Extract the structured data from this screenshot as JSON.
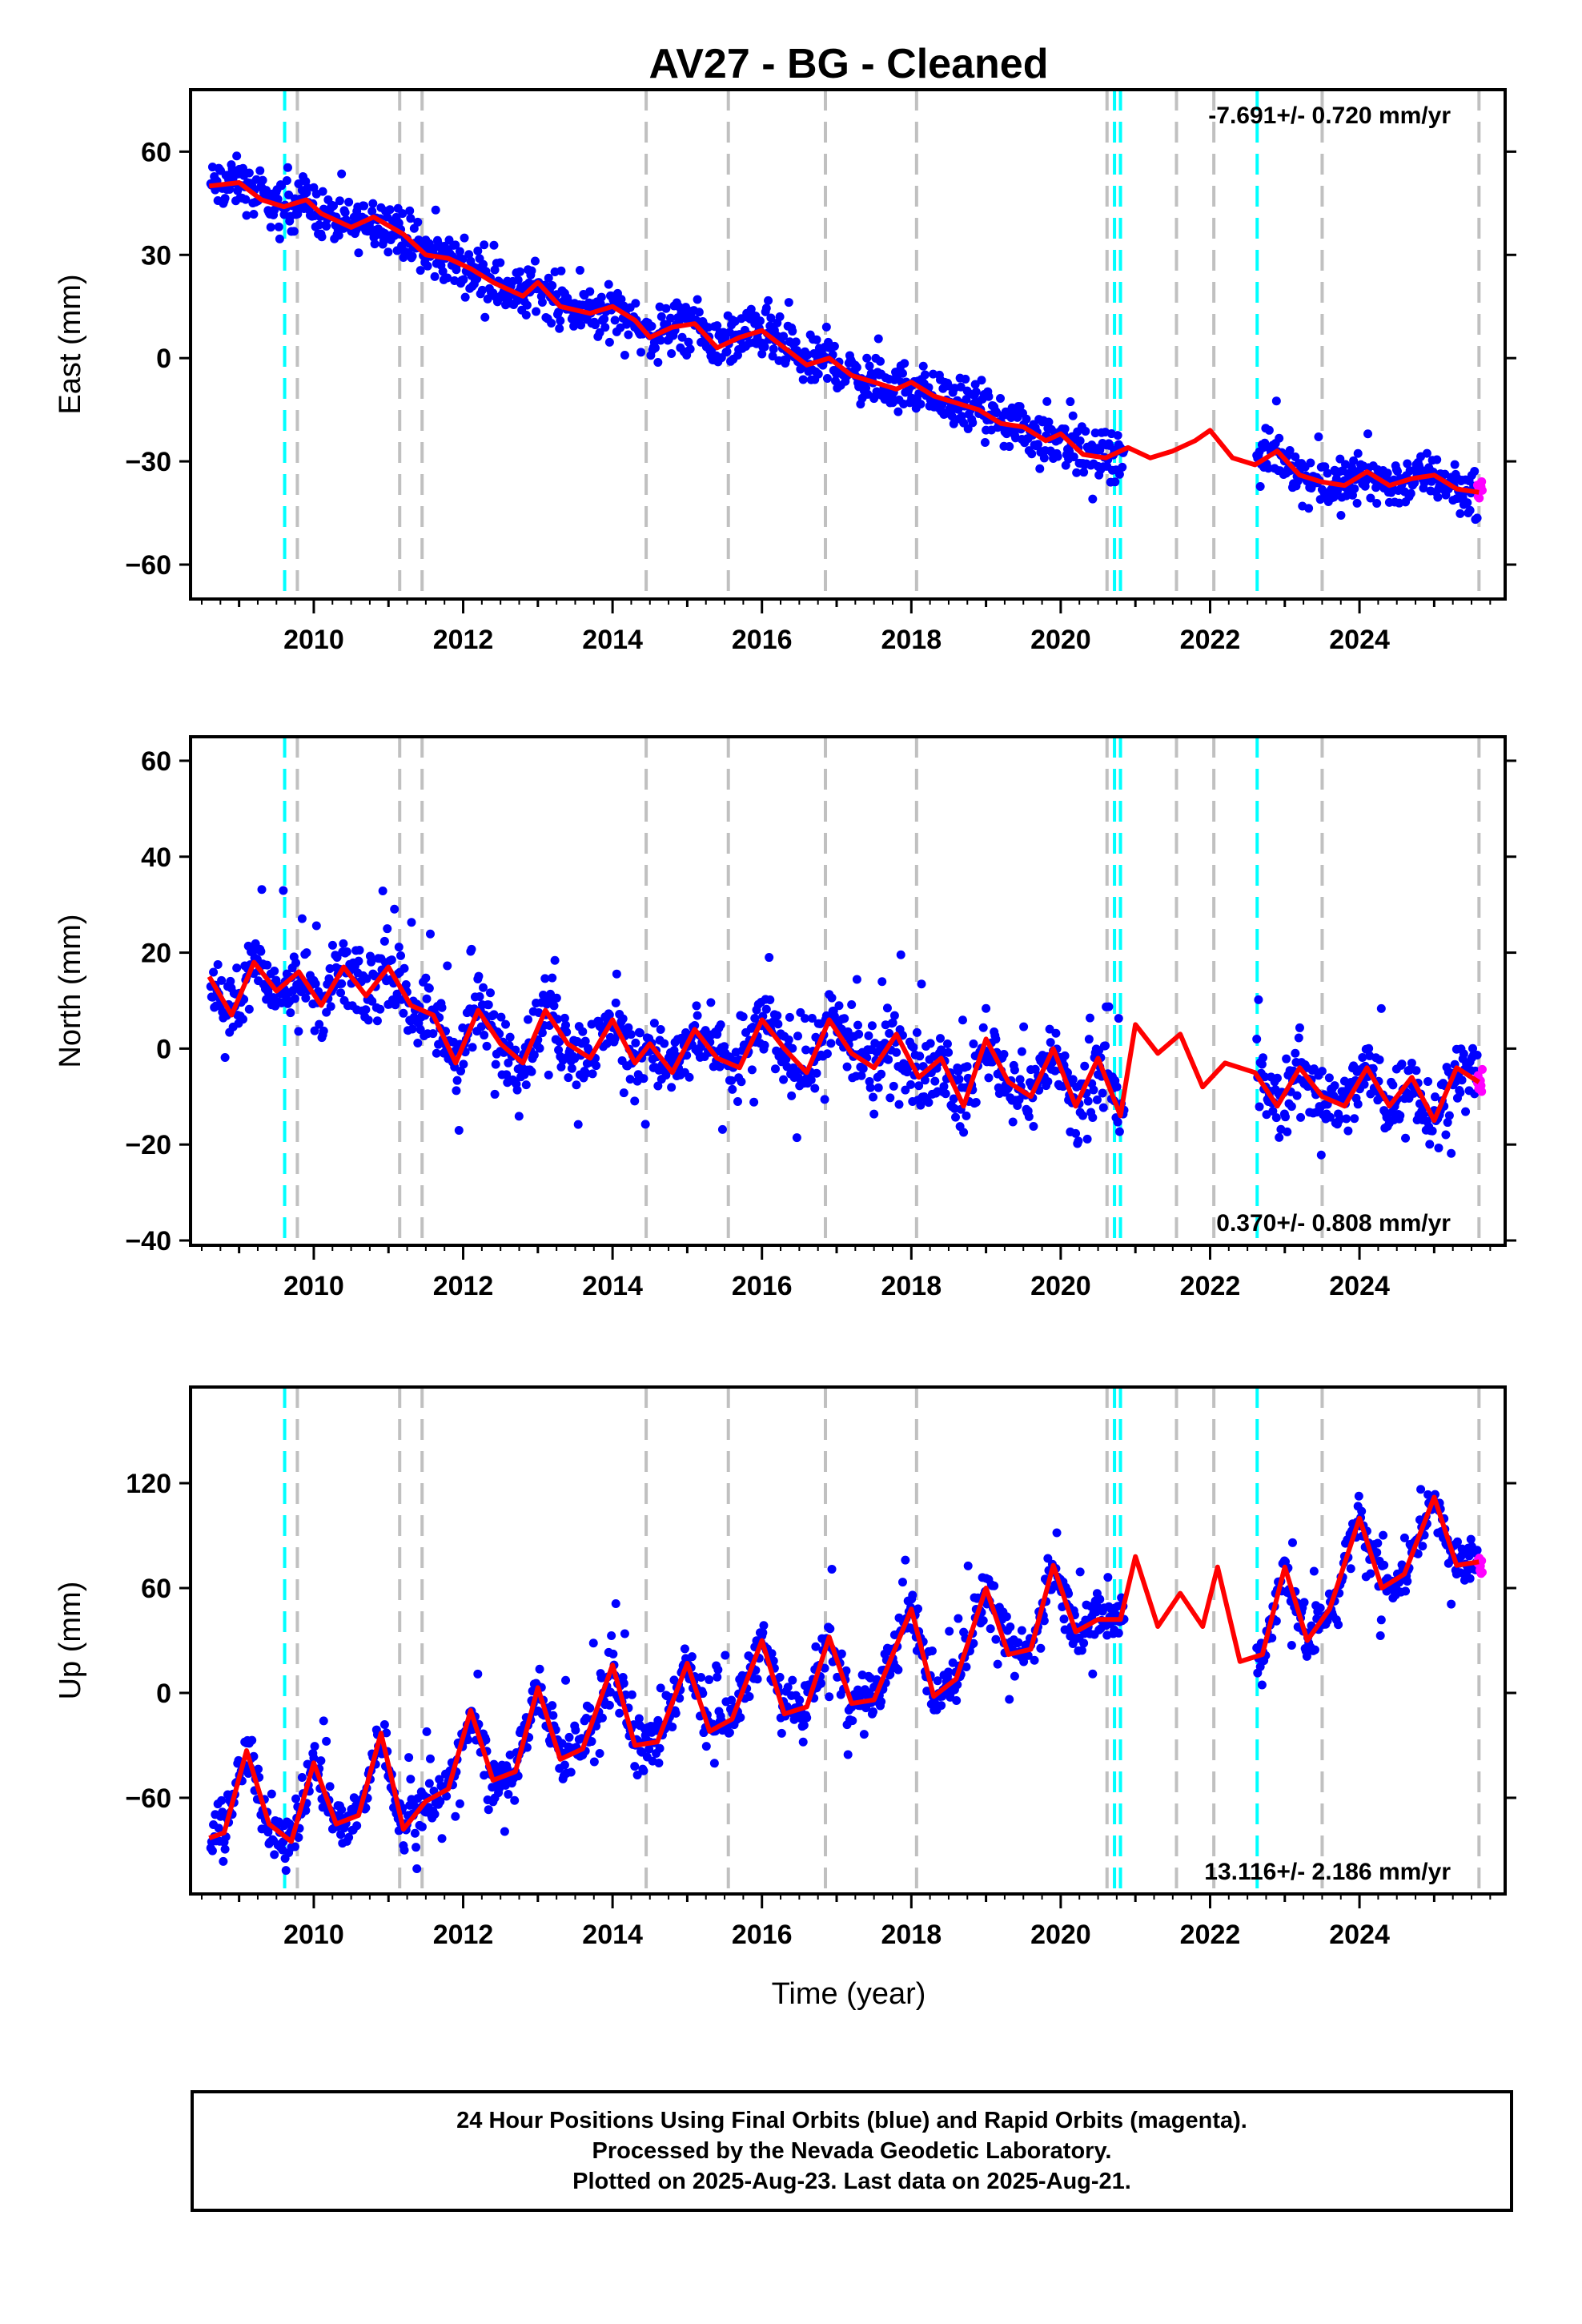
{
  "chart_data": {
    "type": "scatter",
    "title": "AV27  - BG - Cleaned",
    "xlabel": "Time (year)",
    "xlim": [
      2008.35,
      2025.95
    ],
    "x_ticks": [
      2010,
      2012,
      2014,
      2016,
      2018,
      2020,
      2022,
      2024
    ],
    "colors": {
      "final_orbits": "#0000ff",
      "rapid_orbits": "#ff00ff",
      "model_fit": "#ff0000",
      "equipment_change": "#00ffff",
      "other_event": "#c0c0c0"
    },
    "event_lines": {
      "cyan": [
        2009.61,
        2020.72,
        2020.8,
        2022.63
      ],
      "gray": [
        2009.78,
        2011.15,
        2011.45,
        2014.45,
        2015.55,
        2016.85,
        2018.07,
        2020.62,
        2021.55,
        2022.05,
        2023.5,
        2025.6
      ]
    },
    "panels": [
      {
        "id": "east",
        "ylabel": "East (mm)",
        "ylim": [
          -70,
          78
        ],
        "y_ticks": [
          -60,
          -30,
          0,
          30,
          60
        ],
        "rate_text": "-7.691+/- 0.720 mm/yr",
        "rate_position": "top-right",
        "model": [
          [
            2008.6,
            50
          ],
          [
            2009.0,
            51
          ],
          [
            2009.3,
            46
          ],
          [
            2009.6,
            44
          ],
          [
            2009.9,
            46
          ],
          [
            2010.1,
            42
          ],
          [
            2010.5,
            38
          ],
          [
            2010.8,
            41
          ],
          [
            2011.2,
            36
          ],
          [
            2011.5,
            30
          ],
          [
            2011.8,
            29
          ],
          [
            2012.1,
            26
          ],
          [
            2012.4,
            22
          ],
          [
            2012.8,
            18
          ],
          [
            2013.0,
            22
          ],
          [
            2013.3,
            15
          ],
          [
            2013.7,
            13
          ],
          [
            2014.0,
            15
          ],
          [
            2014.3,
            11
          ],
          [
            2014.5,
            6
          ],
          [
            2014.8,
            9
          ],
          [
            2015.1,
            10
          ],
          [
            2015.4,
            3
          ],
          [
            2015.7,
            6
          ],
          [
            2016.0,
            8
          ],
          [
            2016.3,
            3
          ],
          [
            2016.6,
            -2
          ],
          [
            2016.9,
            0
          ],
          [
            2017.2,
            -5
          ],
          [
            2017.5,
            -7
          ],
          [
            2017.8,
            -9
          ],
          [
            2018.0,
            -7
          ],
          [
            2018.3,
            -11
          ],
          [
            2018.6,
            -13
          ],
          [
            2018.9,
            -15
          ],
          [
            2019.2,
            -19
          ],
          [
            2019.5,
            -20
          ],
          [
            2019.8,
            -24
          ],
          [
            2020.0,
            -22
          ],
          [
            2020.3,
            -28
          ],
          [
            2020.6,
            -29
          ],
          [
            2020.9,
            -26
          ],
          [
            2021.2,
            -29
          ],
          [
            2021.5,
            -27
          ],
          [
            2021.8,
            -24
          ],
          [
            2022.0,
            -21
          ],
          [
            2022.3,
            -29
          ],
          [
            2022.6,
            -31
          ],
          [
            2022.9,
            -27
          ],
          [
            2023.2,
            -34
          ],
          [
            2023.5,
            -36
          ],
          [
            2023.8,
            -37
          ],
          [
            2024.1,
            -33
          ],
          [
            2024.4,
            -37
          ],
          [
            2024.7,
            -35
          ],
          [
            2025.0,
            -34
          ],
          [
            2025.3,
            -38
          ],
          [
            2025.6,
            -39
          ]
        ],
        "scatter": {
          "trend": [
            [
              2008.6,
              52
            ],
            [
              2025.6,
              -38
            ]
          ],
          "spread": 5,
          "outlier_spread": 14
        }
      },
      {
        "id": "north",
        "ylabel": "North (mm)",
        "ylim": [
          -41,
          65
        ],
        "y_ticks": [
          -40,
          -20,
          0,
          20,
          40,
          60
        ],
        "rate_text": "0.370+/- 0.808 mm/yr",
        "rate_position": "bottom-right",
        "model": [
          [
            2008.6,
            15
          ],
          [
            2008.9,
            7
          ],
          [
            2009.2,
            18
          ],
          [
            2009.5,
            12
          ],
          [
            2009.8,
            16
          ],
          [
            2010.1,
            9
          ],
          [
            2010.4,
            17
          ],
          [
            2010.7,
            11
          ],
          [
            2011.0,
            17
          ],
          [
            2011.3,
            9
          ],
          [
            2011.6,
            7
          ],
          [
            2011.9,
            -3
          ],
          [
            2012.2,
            8
          ],
          [
            2012.5,
            1
          ],
          [
            2012.8,
            -3
          ],
          [
            2013.1,
            8
          ],
          [
            2013.4,
            1
          ],
          [
            2013.7,
            -2
          ],
          [
            2014.0,
            6
          ],
          [
            2014.3,
            -3
          ],
          [
            2014.5,
            1
          ],
          [
            2014.8,
            -5
          ],
          [
            2015.1,
            4
          ],
          [
            2015.4,
            -2
          ],
          [
            2015.7,
            -4
          ],
          [
            2016.0,
            6
          ],
          [
            2016.3,
            0
          ],
          [
            2016.6,
            -5
          ],
          [
            2016.9,
            6
          ],
          [
            2017.2,
            -1
          ],
          [
            2017.5,
            -4
          ],
          [
            2017.8,
            3
          ],
          [
            2018.1,
            -6
          ],
          [
            2018.4,
            -2
          ],
          [
            2018.7,
            -12
          ],
          [
            2019.0,
            2
          ],
          [
            2019.3,
            -7
          ],
          [
            2019.6,
            -10
          ],
          [
            2019.9,
            0
          ],
          [
            2020.2,
            -12
          ],
          [
            2020.5,
            -2
          ],
          [
            2020.8,
            -14
          ],
          [
            2021.0,
            5
          ],
          [
            2021.3,
            -1
          ],
          [
            2021.6,
            3
          ],
          [
            2021.9,
            -8
          ],
          [
            2022.2,
            -3
          ],
          [
            2022.6,
            -5
          ],
          [
            2022.9,
            -12
          ],
          [
            2023.2,
            -4
          ],
          [
            2023.5,
            -10
          ],
          [
            2023.8,
            -12
          ],
          [
            2024.1,
            -4
          ],
          [
            2024.4,
            -12
          ],
          [
            2024.7,
            -6
          ],
          [
            2025.0,
            -15
          ],
          [
            2025.3,
            -4
          ],
          [
            2025.6,
            -7
          ]
        ],
        "scatter": {
          "trend": [
            [
              2008.6,
              12
            ],
            [
              2025.6,
              -8
            ]
          ],
          "spread": 5,
          "outlier_spread": 18
        }
      },
      {
        "id": "up",
        "ylabel": "Up (mm)",
        "ylim": [
          -115,
          175
        ],
        "y_ticks": [
          -60,
          0,
          60,
          120
        ],
        "rate_text": "13.116+/- 2.186 mm/yr",
        "rate_position": "bottom-right",
        "model": [
          [
            2008.6,
            -83
          ],
          [
            2008.8,
            -80
          ],
          [
            2009.1,
            -33
          ],
          [
            2009.4,
            -75
          ],
          [
            2009.7,
            -85
          ],
          [
            2010.0,
            -40
          ],
          [
            2010.3,
            -75
          ],
          [
            2010.6,
            -70
          ],
          [
            2010.9,
            -23
          ],
          [
            2011.2,
            -78
          ],
          [
            2011.5,
            -62
          ],
          [
            2011.8,
            -55
          ],
          [
            2012.1,
            -10
          ],
          [
            2012.4,
            -50
          ],
          [
            2012.7,
            -45
          ],
          [
            2013.0,
            3
          ],
          [
            2013.3,
            -38
          ],
          [
            2013.6,
            -32
          ],
          [
            2014.0,
            16
          ],
          [
            2014.3,
            -30
          ],
          [
            2014.6,
            -28
          ],
          [
            2015.0,
            17
          ],
          [
            2015.3,
            -22
          ],
          [
            2015.6,
            -15
          ],
          [
            2016.0,
            30
          ],
          [
            2016.3,
            -12
          ],
          [
            2016.6,
            -8
          ],
          [
            2016.9,
            32
          ],
          [
            2017.2,
            -6
          ],
          [
            2017.5,
            -4
          ],
          [
            2018.0,
            48
          ],
          [
            2018.3,
            -2
          ],
          [
            2018.6,
            8
          ],
          [
            2019.0,
            60
          ],
          [
            2019.3,
            22
          ],
          [
            2019.6,
            25
          ],
          [
            2019.9,
            73
          ],
          [
            2020.2,
            35
          ],
          [
            2020.5,
            42
          ],
          [
            2020.8,
            42
          ],
          [
            2021.0,
            78
          ],
          [
            2021.3,
            38
          ],
          [
            2021.6,
            57
          ],
          [
            2021.9,
            38
          ],
          [
            2022.1,
            72
          ],
          [
            2022.4,
            18
          ],
          [
            2022.7,
            22
          ],
          [
            2023.0,
            72
          ],
          [
            2023.3,
            30
          ],
          [
            2023.6,
            48
          ],
          [
            2024.0,
            100
          ],
          [
            2024.3,
            60
          ],
          [
            2024.6,
            68
          ],
          [
            2025.0,
            112
          ],
          [
            2025.3,
            73
          ],
          [
            2025.6,
            75
          ]
        ],
        "scatter": {
          "trend": [
            [
              2008.6,
              -85
            ],
            [
              2025.6,
              75
            ]
          ],
          "spread": 10,
          "outlier_spread": 40
        }
      }
    ]
  },
  "footer": {
    "line1": "24 Hour Positions Using Final Orbits (blue) and Rapid Orbits (magenta).",
    "line2": "Processed by the Nevada Geodetic Laboratory.",
    "line3": "Plotted on 2025-Aug-23. Last data on 2025-Aug-21."
  }
}
